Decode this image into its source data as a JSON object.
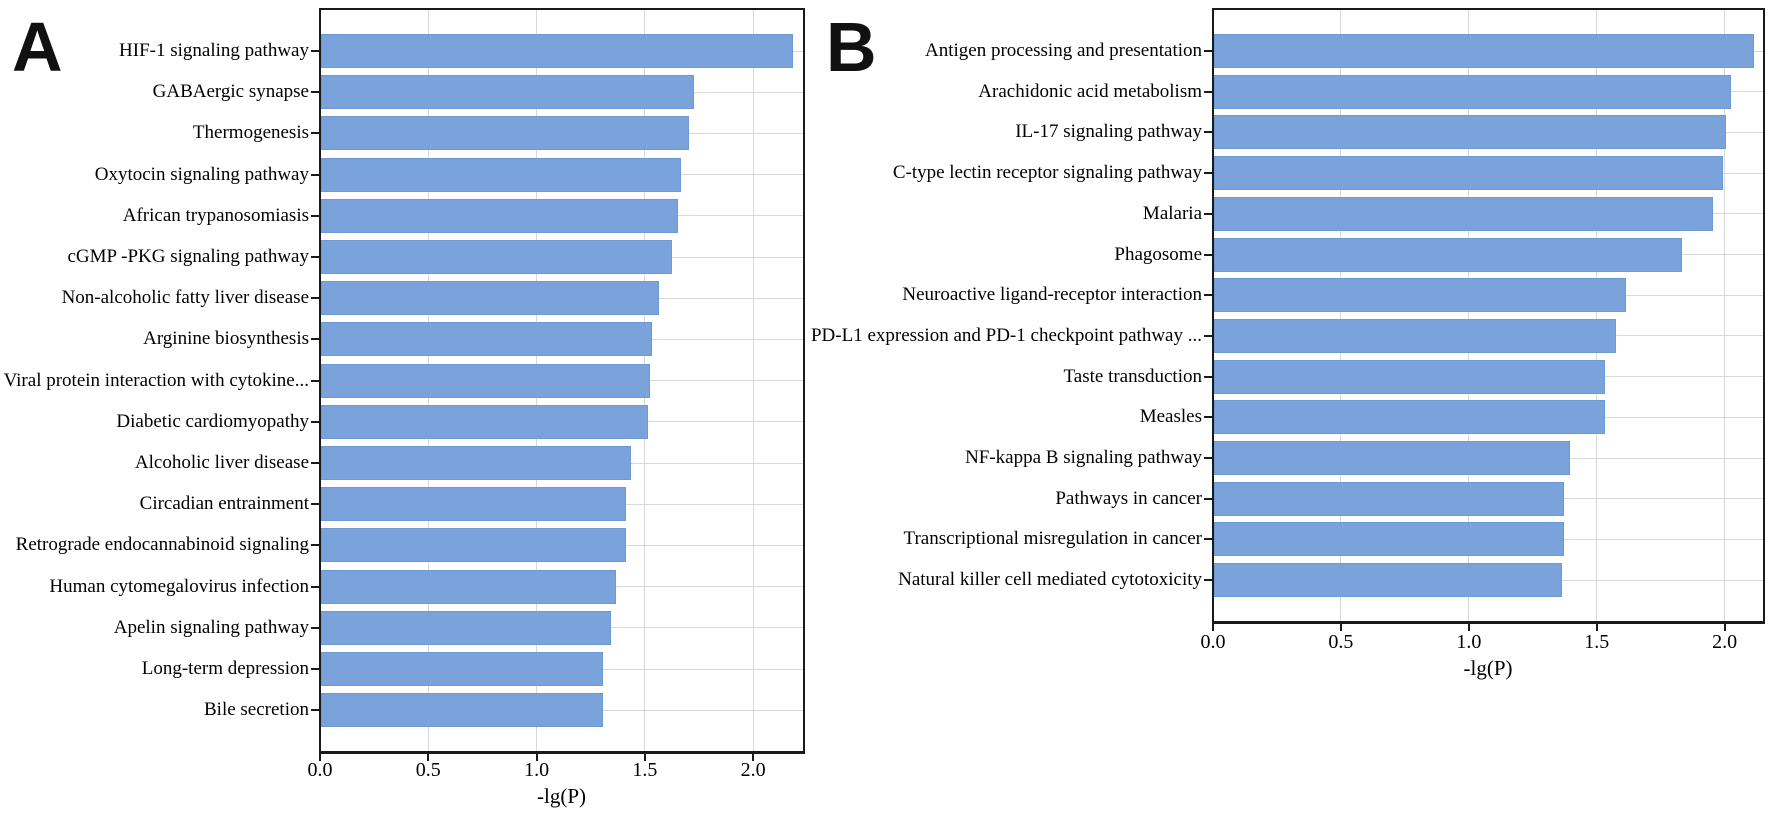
{
  "figure": {
    "background": "#ffffff"
  },
  "colors": {
    "bar_fill": "#7aa3db",
    "bar_edge": "#6e9ad4",
    "gridline": "#d9d9d9",
    "axis": "#1a1a1a",
    "text": "#000000"
  },
  "chart_data": [
    {
      "type": "bar",
      "orientation": "horizontal",
      "panel_label": "A",
      "xlabel": "-lg(P)",
      "xlim": [
        0,
        2.23
      ],
      "xticks": [
        0,
        0.5,
        1.0,
        1.5,
        2.0
      ],
      "xtick_labels": [
        "0.0",
        "0.5",
        "1.0",
        "1.5",
        "2.0"
      ],
      "grid": true,
      "legend": "none",
      "categories": [
        "HIF-1 signaling pathway",
        "GABAergic synapse",
        "Thermogenesis",
        "Oxytocin signaling pathway",
        "African trypanosomiasis",
        "cGMP -PKG signaling pathway",
        "Non-alcoholic fatty liver disease",
        "Arginine biosynthesis",
        "Viral protein interaction with cytokine...",
        "Diabetic cardiomyopathy",
        "Alcoholic liver disease",
        "Circadian entrainment",
        "Retrograde endocannabinoid signaling",
        "Human cytomegalovirus infection",
        "Apelin signaling pathway",
        "Long-term depression",
        "Bile secretion"
      ],
      "values": [
        2.18,
        1.72,
        1.7,
        1.66,
        1.65,
        1.62,
        1.56,
        1.53,
        1.52,
        1.51,
        1.43,
        1.41,
        1.41,
        1.36,
        1.34,
        1.3,
        1.3
      ]
    },
    {
      "type": "bar",
      "orientation": "horizontal",
      "panel_label": "B",
      "xlabel": "-lg(P)",
      "xlim": [
        0,
        2.15
      ],
      "xticks": [
        0,
        0.5,
        1.0,
        1.5,
        2.0
      ],
      "xtick_labels": [
        "0.0",
        "0.5",
        "1.0",
        "1.5",
        "2.0"
      ],
      "grid": true,
      "legend": "none",
      "categories": [
        "Antigen processing and presentation",
        "Arachidonic acid metabolism",
        "IL-17 signaling pathway",
        "C-type lectin receptor signaling pathway",
        "Malaria",
        "Phagosome",
        "Neuroactive ligand-receptor interaction",
        "PD-L1 expression and PD-1 checkpoint pathway ...",
        "Taste transduction",
        "Measles",
        "NF-kappa B signaling pathway",
        "Pathways in cancer",
        "Transcriptional misregulation in cancer",
        "Natural killer cell mediated cytotoxicity"
      ],
      "values": [
        2.11,
        2.02,
        2.0,
        1.99,
        1.95,
        1.83,
        1.61,
        1.57,
        1.53,
        1.53,
        1.39,
        1.37,
        1.37,
        1.36
      ]
    }
  ]
}
